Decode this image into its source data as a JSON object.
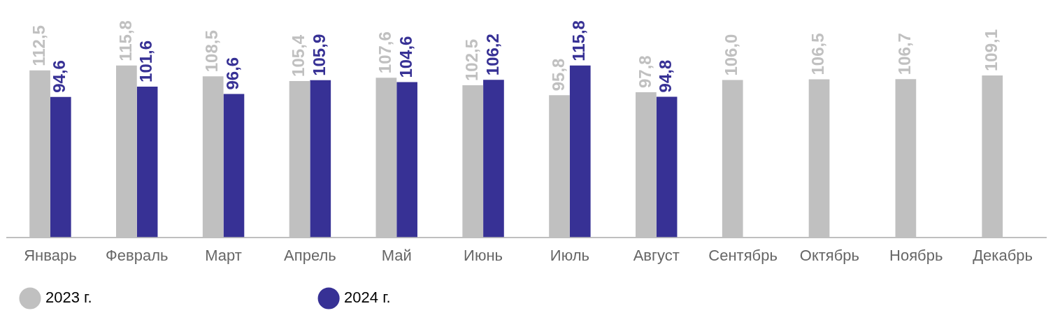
{
  "chart_data": {
    "type": "bar",
    "categories": [
      "Январь",
      "Февраль",
      "Март",
      "Апрель",
      "Май",
      "Июнь",
      "Июль",
      "Август",
      "Сентябрь",
      "Октябрь",
      "Ноябрь",
      "Декабрь"
    ],
    "series": [
      {
        "name": "2023 г.",
        "color": "#c0c0c0",
        "values": [
          112.5,
          115.8,
          108.5,
          105.4,
          107.6,
          102.5,
          95.8,
          97.8,
          106.0,
          106.5,
          106.7,
          109.1
        ],
        "value_labels": [
          "112,5",
          "115,8",
          "108,5",
          "105,4",
          "107,6",
          "102,5",
          "95,8",
          "97,8",
          "106,0",
          "106,5",
          "106,7",
          "109,1"
        ]
      },
      {
        "name": "2024 г.",
        "color": "#373195",
        "values": [
          94.6,
          101.6,
          96.6,
          105.9,
          104.6,
          106.2,
          115.8,
          94.8,
          null,
          null,
          null,
          null
        ],
        "value_labels": [
          "94,6",
          "101,6",
          "96,6",
          "105,9",
          "104,6",
          "106,2",
          "115,8",
          "94,8",
          null,
          null,
          null,
          null
        ]
      }
    ],
    "legend": "bottom",
    "grid": false
  }
}
